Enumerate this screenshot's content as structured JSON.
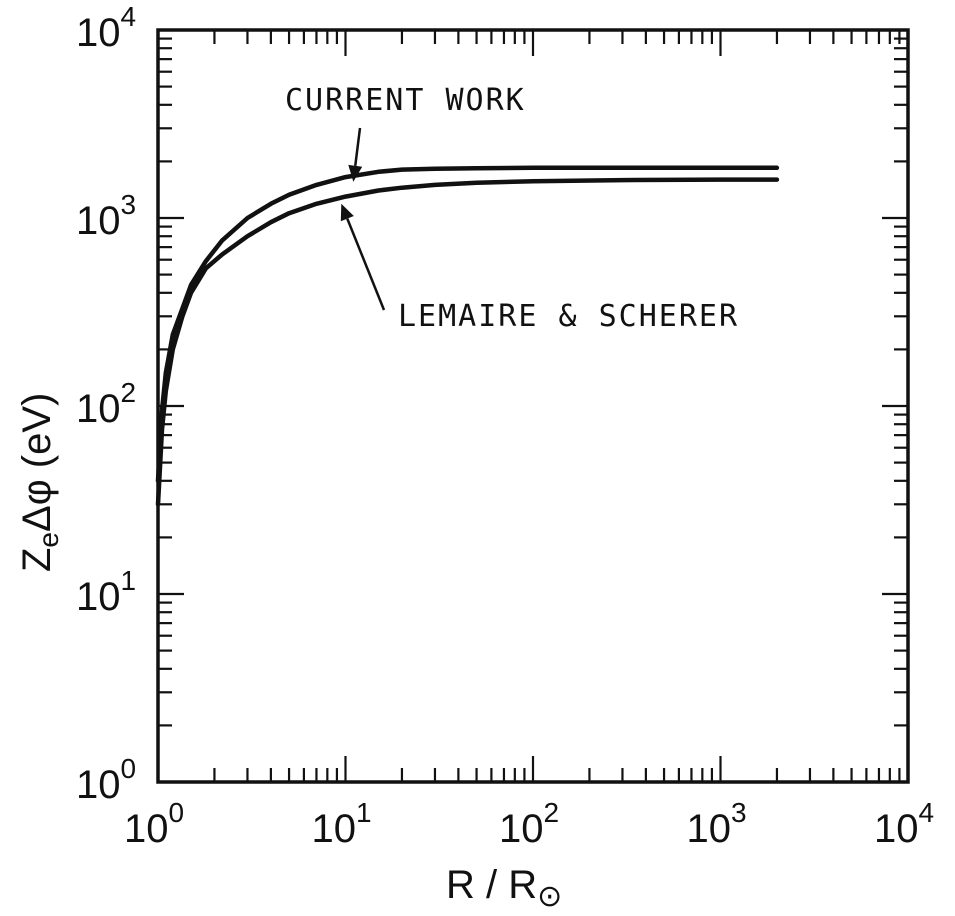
{
  "chart_data": {
    "type": "line",
    "x_scale": "log",
    "y_scale": "log",
    "xlim": [
      1,
      10000
    ],
    "ylim": [
      1,
      10000
    ],
    "grid": false,
    "xlabel": {
      "base": "R / R",
      "sub": "⊙"
    },
    "ylabel": {
      "a": "Z",
      "b": "e",
      "c": "Δφ (eV)"
    },
    "x_ticks": [
      {
        "value": 1,
        "base": "10",
        "exp": "0"
      },
      {
        "value": 10,
        "base": "10",
        "exp": "1"
      },
      {
        "value": 100,
        "base": "10",
        "exp": "2"
      },
      {
        "value": 1000,
        "base": "10",
        "exp": "3"
      },
      {
        "value": 10000,
        "base": "10",
        "exp": "4"
      }
    ],
    "y_ticks": [
      {
        "value": 1,
        "base": "10",
        "exp": "0"
      },
      {
        "value": 10,
        "base": "10",
        "exp": "1"
      },
      {
        "value": 100,
        "base": "10",
        "exp": "2"
      },
      {
        "value": 1000,
        "base": "10",
        "exp": "3"
      },
      {
        "value": 10000,
        "base": "10",
        "exp": "4"
      }
    ],
    "series": [
      {
        "name": "CURRENT WORK",
        "x": [
          1.0,
          1.05,
          1.1,
          1.2,
          1.35,
          1.5,
          1.8,
          2.2,
          3,
          4,
          5,
          7,
          10,
          15,
          20,
          30,
          50,
          100,
          300,
          1000,
          2000
        ],
        "y": [
          40,
          95,
          150,
          240,
          330,
          440,
          590,
          760,
          1000,
          1190,
          1330,
          1500,
          1650,
          1760,
          1810,
          1830,
          1840,
          1850,
          1850,
          1850,
          1850
        ]
      },
      {
        "name": "LEMAIRE & SCHERER",
        "x": [
          1.0,
          1.05,
          1.1,
          1.2,
          1.35,
          1.5,
          1.8,
          2.2,
          3,
          4,
          5,
          7,
          10,
          15,
          20,
          30,
          50,
          100,
          300,
          1000,
          2000
        ],
        "y": [
          30,
          75,
          120,
          200,
          300,
          400,
          540,
          640,
          800,
          950,
          1060,
          1190,
          1300,
          1400,
          1450,
          1500,
          1540,
          1570,
          1590,
          1600,
          1600
        ]
      }
    ],
    "annotations": [
      {
        "text": "CURRENT WORK",
        "arrow_to": {
          "x": 11,
          "y": 1560
        }
      },
      {
        "text": "LEMAIRE & SCHERER",
        "arrow_to": {
          "x": 9.5,
          "y": 1190
        }
      }
    ],
    "colors": {
      "ink": "#111111",
      "background": "#ffffff"
    }
  }
}
